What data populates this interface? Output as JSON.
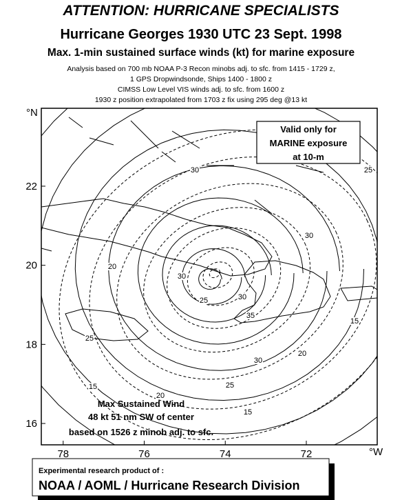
{
  "header": {
    "title": "ATTENTION: HURRICANE SPECIALISTS",
    "subtitle": "Hurricane Georges 1930 UTC 23 Sept. 1998",
    "product": "Max. 1-min sustained surface winds (kt) for marine exposure",
    "notes": [
      "Analysis based on 700 mb NOAA P-3 Recon minobs adj. to sfc. from 1415 - 1729 z,",
      "1 GPS Dropwindsonde, Ships 1400 - 1800 z",
      "CIMSS Low Level VIS winds adj. to sfc. from 1600 z",
      "1930 z position extrapolated from 1703 z  fix using 295 deg @13 kt"
    ]
  },
  "map": {
    "lat_range": [
      15.46,
      23.97
    ],
    "lon_range": [
      78.54,
      70.25
    ],
    "lat_ticks": [
      16,
      18,
      20,
      22
    ],
    "lon_ticks": [
      78,
      76,
      74,
      72
    ],
    "lat_unit": "°N",
    "lon_unit": "°W"
  },
  "validity_box": [
    "Valid only for",
    "MARINE exposure",
    "at 10-m"
  ],
  "max_wind": [
    "Max Sustained Wind",
    "48 kt  51 nm SW of center",
    "based on 1526 z minob adj. to sfc."
  ],
  "contour_labels": [
    30,
    25,
    30,
    20,
    30,
    25,
    30,
    35,
    25,
    30,
    20,
    15,
    25,
    15,
    20,
    15
  ],
  "footer": {
    "line1": "Experimental research product of :",
    "line2": "NOAA / AOML / Hurricane Research Division"
  }
}
